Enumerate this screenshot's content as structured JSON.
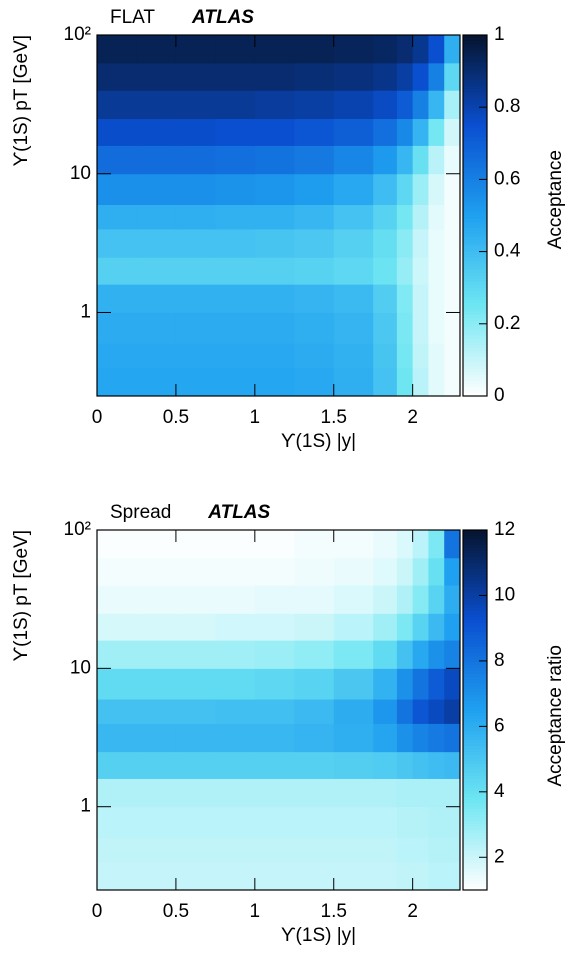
{
  "chart_data": [
    {
      "type": "heatmap",
      "label": "FLAT",
      "experiment": "ATLAS",
      "xlabel": "ϒ(1S) |y|",
      "ylabel": "ϒ(1S) pT [GeV]",
      "colorbar_label": "Acceptance",
      "x_bins": [
        0,
        0.25,
        0.5,
        0.75,
        1,
        1.25,
        1.5,
        1.75,
        1.9,
        2.0,
        2.1,
        2.2,
        2.3
      ],
      "y_bins": [
        0.25,
        0.4,
        0.6,
        1,
        1.6,
        2.5,
        4,
        6,
        10,
        16,
        25,
        40,
        63,
        100
      ],
      "values": [
        [
          0.48,
          0.48,
          0.48,
          0.48,
          0.48,
          0.47,
          0.45,
          0.38,
          0.25,
          0.12,
          0.05,
          0.02
        ],
        [
          0.47,
          0.47,
          0.47,
          0.47,
          0.47,
          0.46,
          0.44,
          0.37,
          0.24,
          0.11,
          0.05,
          0.02
        ],
        [
          0.46,
          0.46,
          0.46,
          0.46,
          0.46,
          0.45,
          0.43,
          0.36,
          0.23,
          0.1,
          0.04,
          0.02
        ],
        [
          0.44,
          0.44,
          0.44,
          0.44,
          0.44,
          0.43,
          0.41,
          0.34,
          0.22,
          0.1,
          0.04,
          0.02
        ],
        [
          0.33,
          0.33,
          0.33,
          0.33,
          0.33,
          0.32,
          0.3,
          0.26,
          0.18,
          0.09,
          0.04,
          0.02
        ],
        [
          0.38,
          0.38,
          0.38,
          0.38,
          0.37,
          0.36,
          0.33,
          0.28,
          0.2,
          0.1,
          0.04,
          0.02
        ],
        [
          0.45,
          0.45,
          0.45,
          0.44,
          0.44,
          0.42,
          0.38,
          0.32,
          0.24,
          0.13,
          0.05,
          0.02
        ],
        [
          0.55,
          0.55,
          0.55,
          0.54,
          0.53,
          0.51,
          0.47,
          0.4,
          0.3,
          0.17,
          0.07,
          0.02
        ],
        [
          0.66,
          0.66,
          0.66,
          0.65,
          0.64,
          0.62,
          0.58,
          0.52,
          0.42,
          0.27,
          0.12,
          0.04
        ],
        [
          0.76,
          0.76,
          0.76,
          0.75,
          0.75,
          0.73,
          0.7,
          0.65,
          0.57,
          0.43,
          0.24,
          0.08
        ],
        [
          0.84,
          0.84,
          0.84,
          0.84,
          0.83,
          0.82,
          0.8,
          0.77,
          0.71,
          0.6,
          0.42,
          0.15
        ],
        [
          0.9,
          0.9,
          0.9,
          0.9,
          0.9,
          0.89,
          0.88,
          0.86,
          0.82,
          0.75,
          0.6,
          0.3
        ],
        [
          0.94,
          0.94,
          0.94,
          0.94,
          0.94,
          0.94,
          0.93,
          0.92,
          0.9,
          0.85,
          0.75,
          0.45
        ]
      ],
      "xlim": [
        0,
        2.3
      ],
      "xticks": [
        0,
        0.5,
        1,
        1.5,
        2
      ],
      "ylim": [
        0.25,
        100
      ],
      "log_y": true,
      "yticks": [
        1,
        10,
        {
          "value": 100,
          "label": "10²"
        }
      ],
      "clim": [
        0,
        1
      ],
      "cticks": [
        0,
        0.2,
        0.4,
        0.6,
        0.8,
        1
      ],
      "colorscale": [
        "#ffffff",
        "#6ee6f2",
        "#1fa0f0",
        "#0a4fd0",
        "#06142e"
      ]
    },
    {
      "type": "heatmap",
      "label": "Spread",
      "experiment": "ATLAS",
      "xlabel": "ϒ(1S) |y|",
      "ylabel": "ϒ(1S) pT [GeV]",
      "colorbar_label": "Acceptance ratio",
      "x_bins": [
        0,
        0.25,
        0.5,
        0.75,
        1,
        1.25,
        1.5,
        1.75,
        1.9,
        2.0,
        2.1,
        2.2,
        2.3
      ],
      "y_bins": [
        0.25,
        0.4,
        0.6,
        1,
        1.6,
        2.5,
        4,
        6,
        10,
        16,
        25,
        40,
        63,
        100
      ],
      "values": [
        [
          2.1,
          2.1,
          2.1,
          2.1,
          2.1,
          2.1,
          2.1,
          2.1,
          2.2,
          2.2,
          2.3,
          2.3
        ],
        [
          2.2,
          2.2,
          2.2,
          2.2,
          2.2,
          2.2,
          2.2,
          2.2,
          2.3,
          2.3,
          2.4,
          2.4
        ],
        [
          2.3,
          2.3,
          2.3,
          2.3,
          2.3,
          2.3,
          2.3,
          2.3,
          2.4,
          2.4,
          2.5,
          2.5
        ],
        [
          2.5,
          2.5,
          2.5,
          2.5,
          2.5,
          2.5,
          2.5,
          2.5,
          2.6,
          2.6,
          2.6,
          2.6
        ],
        [
          4.6,
          4.6,
          4.6,
          4.6,
          4.6,
          4.6,
          4.7,
          4.8,
          5,
          5.2,
          5.4,
          5.5
        ],
        [
          5.6,
          5.6,
          5.6,
          5.6,
          5.6,
          5.7,
          5.9,
          6.3,
          7,
          7.5,
          7.8,
          8
        ],
        [
          5.2,
          5.2,
          5.2,
          5.3,
          5.3,
          5.5,
          6,
          6.8,
          8,
          9,
          9.5,
          10
        ],
        [
          4.2,
          4.2,
          4.2,
          4.2,
          4.3,
          4.5,
          5,
          5.8,
          7,
          8,
          8.8,
          9.5
        ],
        [
          2.8,
          2.8,
          2.8,
          2.8,
          2.9,
          3.1,
          3.5,
          4.2,
          5.2,
          6.2,
          7,
          7.5
        ],
        [
          1.8,
          1.8,
          1.8,
          1.9,
          1.9,
          2,
          2.3,
          2.8,
          3.5,
          4.5,
          5.5,
          6.5
        ],
        [
          1.4,
          1.4,
          1.4,
          1.4,
          1.5,
          1.5,
          1.7,
          2,
          2.5,
          3.3,
          4.5,
          6
        ],
        [
          1.2,
          1.2,
          1.2,
          1.2,
          1.2,
          1.3,
          1.4,
          1.6,
          2,
          2.8,
          4,
          6.5
        ],
        [
          1.1,
          1.1,
          1.1,
          1.1,
          1.1,
          1.2,
          1.2,
          1.4,
          1.7,
          2.3,
          3.5,
          8
        ]
      ],
      "xlim": [
        0,
        2.3
      ],
      "xticks": [
        0,
        0.5,
        1,
        1.5,
        2
      ],
      "ylim": [
        0.25,
        100
      ],
      "log_y": true,
      "yticks": [
        1,
        10,
        {
          "value": 100,
          "label": "10²"
        }
      ],
      "clim": [
        1,
        12
      ],
      "cticks": [
        2,
        4,
        6,
        8,
        10,
        12
      ],
      "colorscale": [
        "#ffffff",
        "#6ee6f2",
        "#1fa0f0",
        "#0a4fd0",
        "#06142e"
      ]
    }
  ]
}
